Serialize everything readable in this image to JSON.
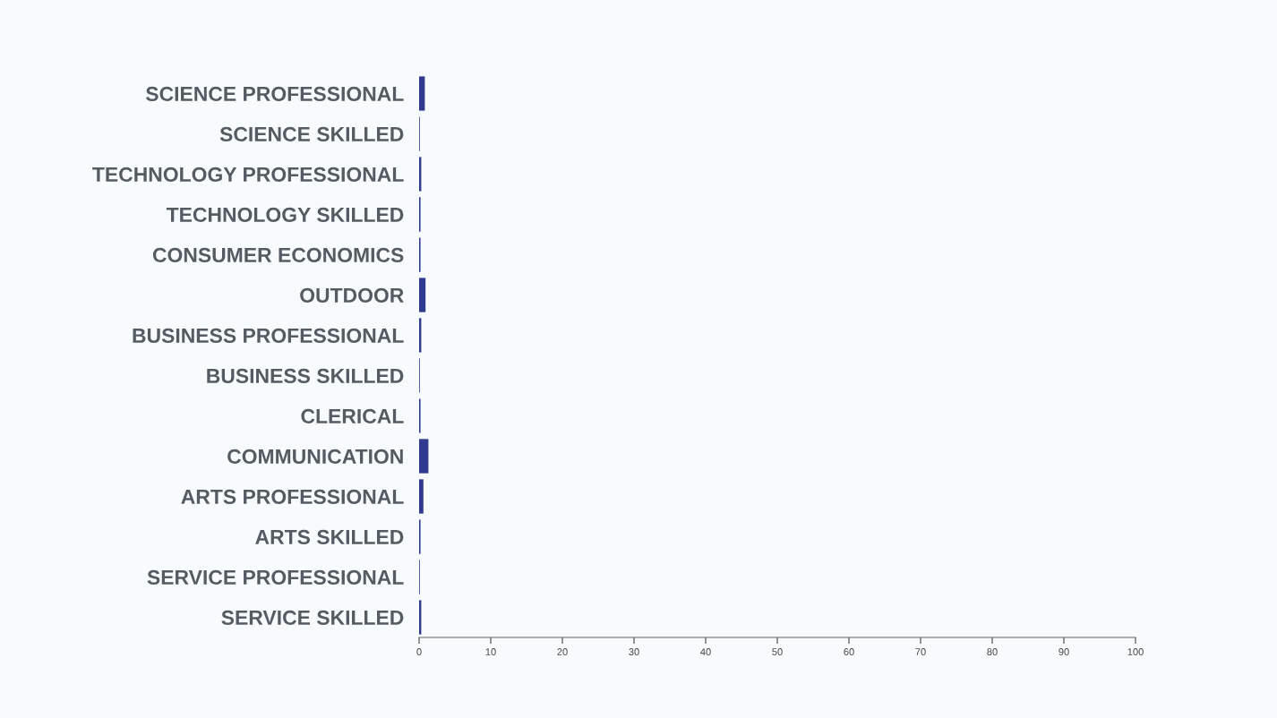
{
  "chart_data": {
    "type": "bar",
    "orientation": "horizontal",
    "categories": [
      "SCIENCE PROFESSIONAL",
      "SCIENCE SKILLED",
      "TECHNOLOGY PROFESSIONAL",
      "TECHNOLOGY SKILLED",
      "CONSUMER ECONOMICS",
      "OUTDOOR",
      "BUSINESS PROFESSIONAL",
      "BUSINESS SKILLED",
      "CLERICAL",
      "COMMUNICATION",
      "ARTS PROFESSIONAL",
      "ARTS SKILLED",
      "SERVICE PROFESSIONAL",
      "SERVICE SKILLED"
    ],
    "values": [
      0.8,
      0.1,
      0.3,
      0.2,
      0.2,
      0.9,
      0.3,
      0.1,
      0.2,
      1.3,
      0.6,
      0.2,
      0.1,
      0.3
    ],
    "color": "#2f3a8f",
    "xlim": [
      0,
      100
    ],
    "xticks": [
      0,
      10,
      20,
      30,
      40,
      50,
      60,
      70,
      80,
      90,
      100
    ],
    "grid": false
  }
}
